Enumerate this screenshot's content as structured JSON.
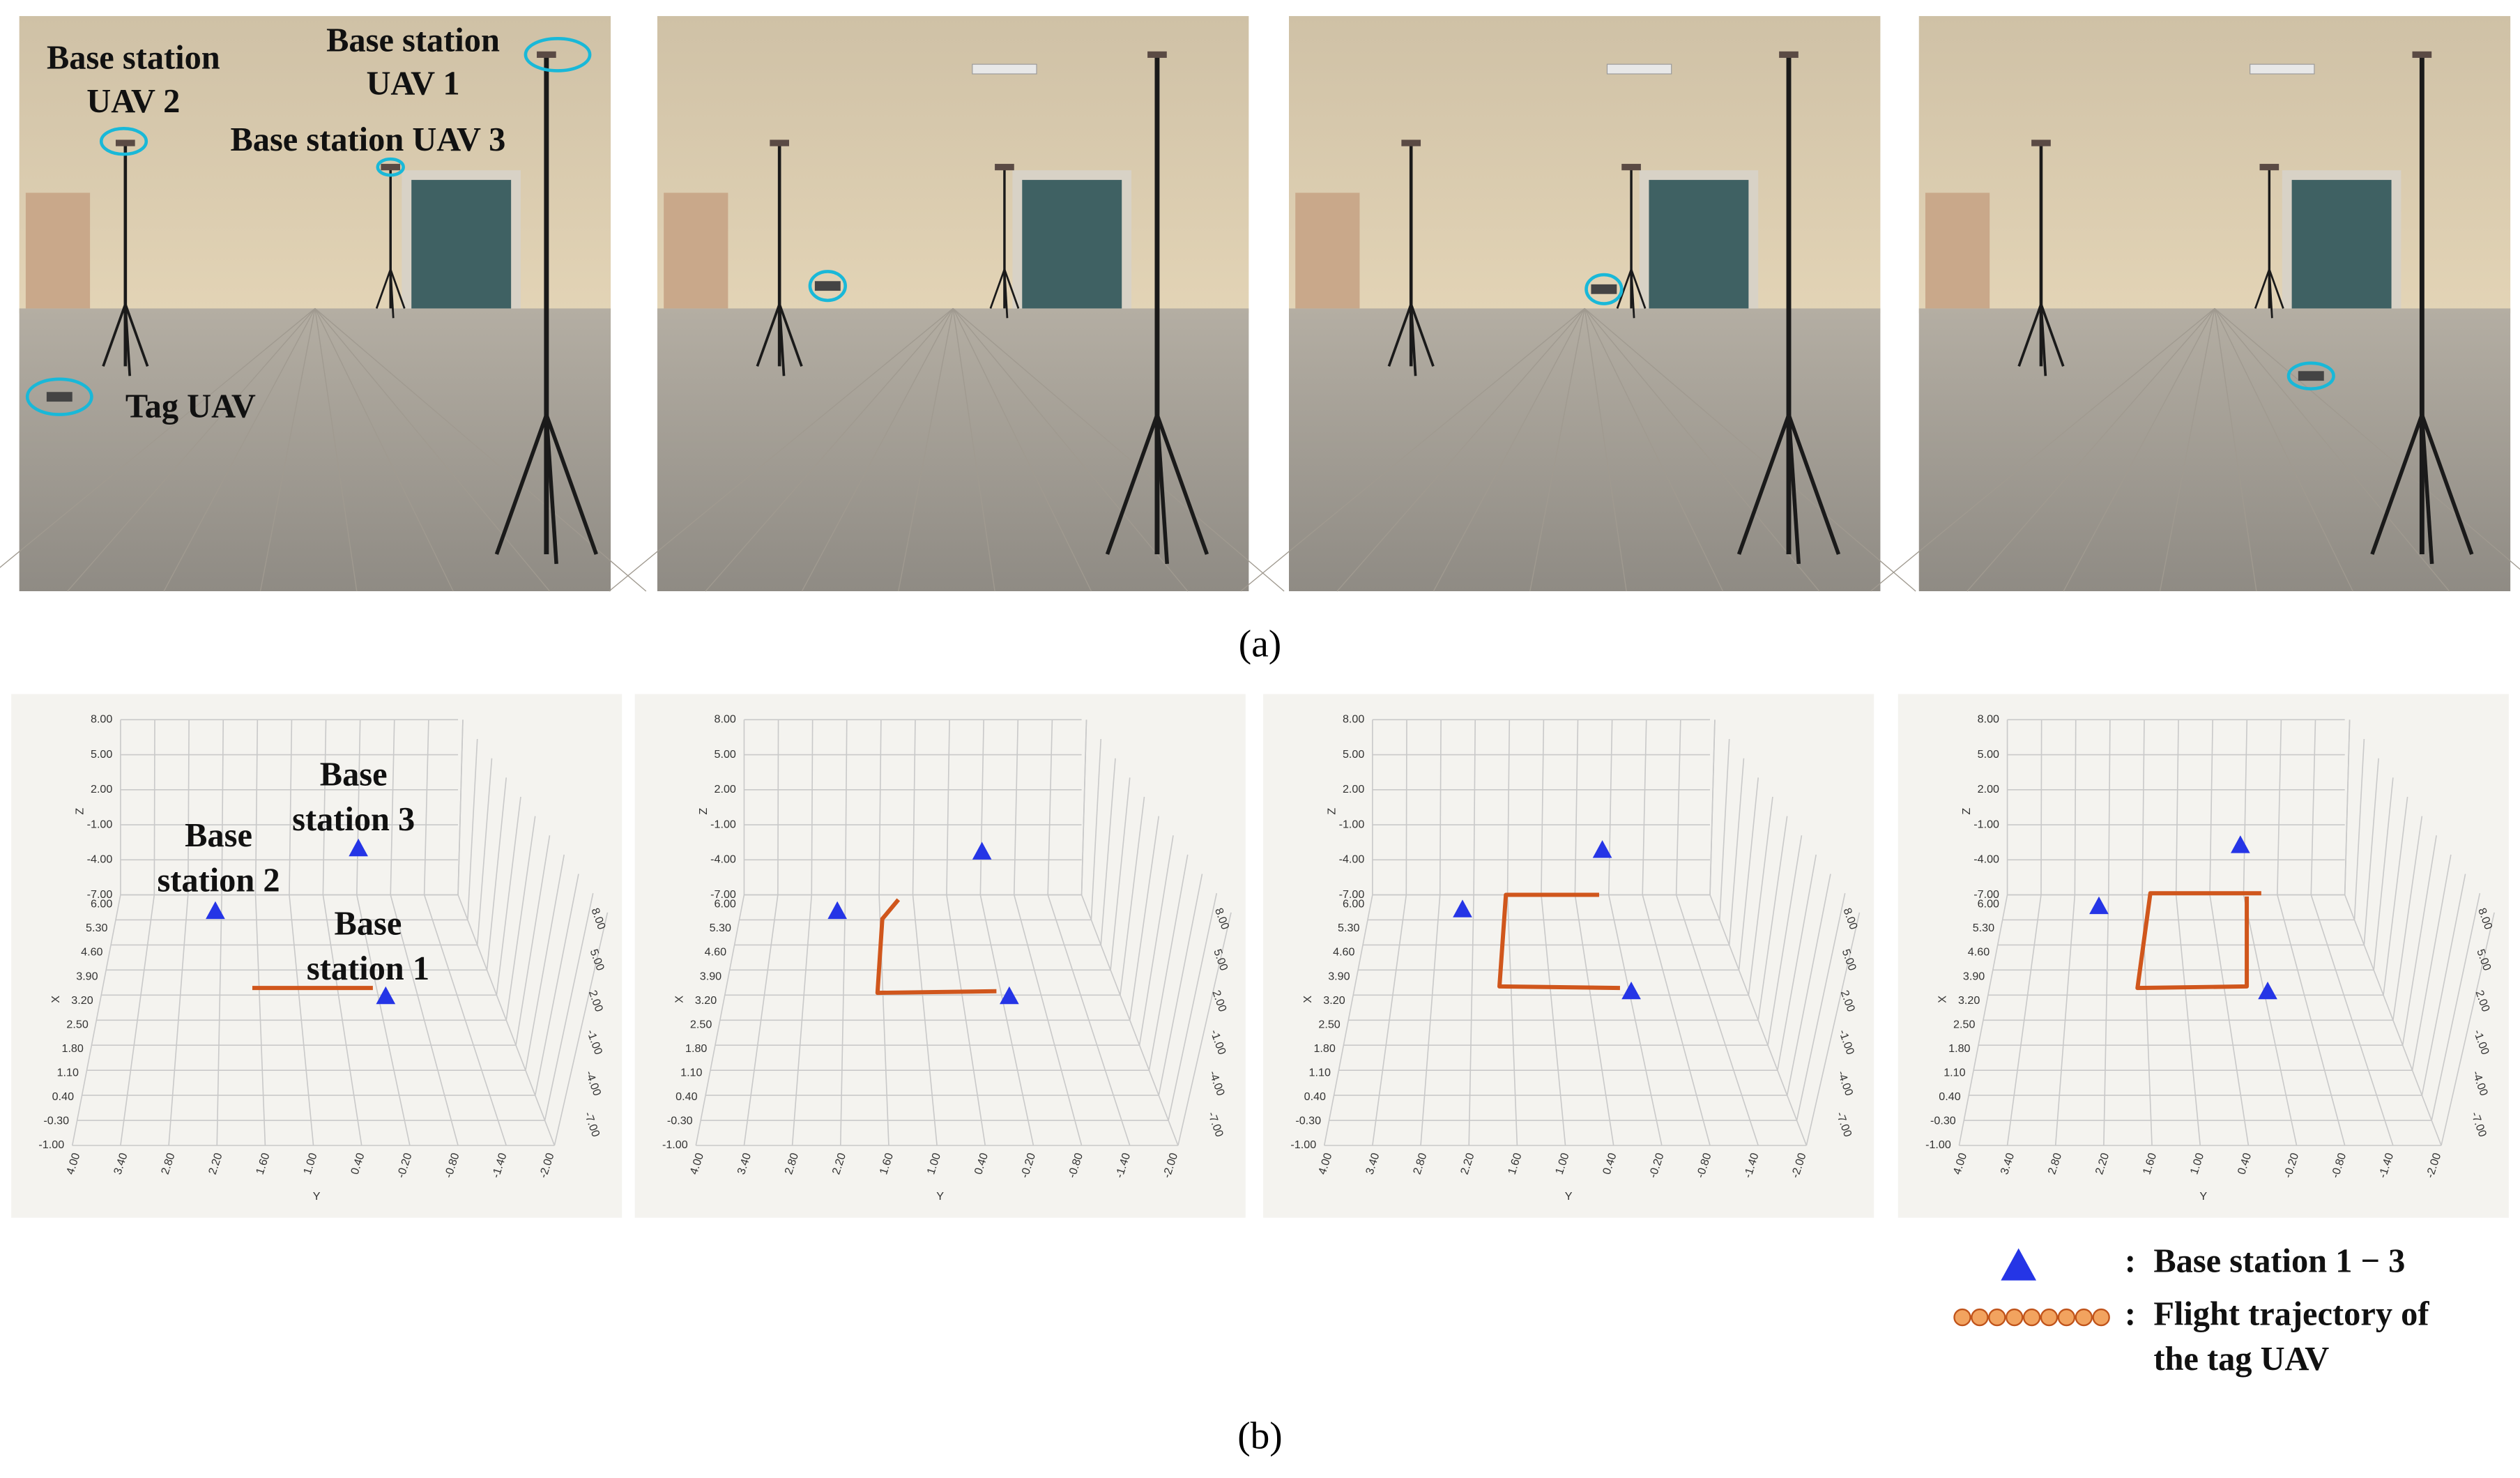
{
  "figure": {
    "panel_a": {
      "label": "(a)",
      "annotations": {
        "bs2": [
          "Base station",
          "UAV 2"
        ],
        "bs1": [
          "Base station",
          "UAV 1"
        ],
        "bs3": "Base station UAV 3",
        "tag": "Tag UAV"
      }
    },
    "panel_b": {
      "label": "(b)",
      "axes": {
        "z_label": "Z",
        "x_label": "X",
        "y_label": "Y",
        "z_ticks": [
          "8.00",
          "5.00",
          "2.00",
          "-1.00",
          "-4.00",
          "-7.00"
        ],
        "x_ticks": [
          "6.00",
          "5.30",
          "4.60",
          "3.90",
          "3.20",
          "2.50",
          "1.80",
          "1.10",
          "0.40",
          "-0.30",
          "-1.00"
        ],
        "y_ticks": [
          "4.00",
          "3.40",
          "2.80",
          "2.20",
          "1.60",
          "1.00",
          "0.40",
          "-0.20",
          "-0.80",
          "-1.40",
          "-2.00"
        ]
      },
      "annotations": {
        "bs3": [
          "Base",
          "station 3"
        ],
        "bs2": [
          "Base",
          "station 2"
        ],
        "bs1": [
          "Base",
          "station 1"
        ]
      }
    },
    "legend": {
      "base": "Base station 1 − 3",
      "trajectory": [
        "Flight trajectory of",
        "the tag UAV"
      ],
      "colon": ":"
    }
  }
}
